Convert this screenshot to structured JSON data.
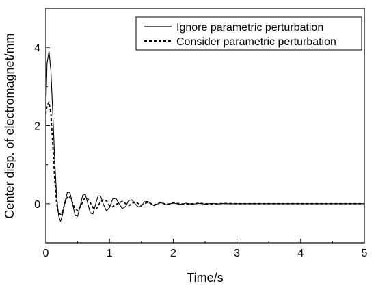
{
  "chart_data": {
    "type": "line",
    "xlabel": "Time/s",
    "ylabel": "Center disp. of electromagnet/mm",
    "xlim": [
      0,
      5
    ],
    "ylim": [
      -1.0,
      5.0
    ],
    "xticks": [
      0,
      1,
      2,
      3,
      4,
      5
    ],
    "xtick_labels": [
      "0",
      "1",
      "2",
      "3",
      "4",
      "5"
    ],
    "yticks": [
      0,
      2,
      4
    ],
    "ytick_labels": [
      "0",
      "2",
      "4"
    ],
    "grid": false,
    "legend_position": "top-right",
    "series": [
      {
        "name": "Ignore parametric perturbation",
        "style": "solid",
        "color": "#000000",
        "x": [
          0,
          0.02,
          0.05,
          0.08,
          0.11,
          0.14,
          0.17,
          0.2,
          0.23,
          0.26,
          0.3,
          0.34,
          0.38,
          0.42,
          0.46,
          0.5,
          0.54,
          0.58,
          0.62,
          0.66,
          0.7,
          0.74,
          0.78,
          0.82,
          0.86,
          0.9,
          0.95,
          1.0,
          1.05,
          1.1,
          1.15,
          1.2,
          1.25,
          1.3,
          1.35,
          1.4,
          1.45,
          1.5,
          1.55,
          1.6,
          1.65,
          1.7,
          1.8,
          1.9,
          2.0,
          2.1,
          2.2,
          2.3,
          2.4,
          2.5,
          2.6,
          2.7,
          2.8,
          2.9,
          3.0,
          3.5,
          4.0,
          4.5,
          5.0
        ],
        "y": [
          2.4,
          3.6,
          3.9,
          3.4,
          2.3,
          1.1,
          0.2,
          -0.3,
          -0.45,
          -0.3,
          0.05,
          0.3,
          0.28,
          0.0,
          -0.3,
          -0.32,
          -0.05,
          0.22,
          0.24,
          0.0,
          -0.24,
          -0.26,
          -0.02,
          0.2,
          0.2,
          0.0,
          -0.18,
          -0.1,
          0.12,
          0.14,
          0.0,
          -0.12,
          -0.08,
          0.08,
          0.1,
          0.0,
          -0.08,
          -0.06,
          0.05,
          0.06,
          0.0,
          -0.05,
          0.03,
          -0.03,
          0.02,
          -0.02,
          0.015,
          -0.015,
          0.01,
          -0.01,
          0.008,
          -0.006,
          0.005,
          -0.004,
          0.0,
          0.0,
          0.0,
          0.0,
          0.0
        ]
      },
      {
        "name": "Consider parametric perturbation",
        "style": "dashed",
        "color": "#000000",
        "x": [
          0,
          0.02,
          0.05,
          0.08,
          0.11,
          0.14,
          0.17,
          0.2,
          0.24,
          0.28,
          0.32,
          0.36,
          0.4,
          0.45,
          0.5,
          0.55,
          0.6,
          0.65,
          0.7,
          0.75,
          0.8,
          0.85,
          0.9,
          0.95,
          1.0,
          1.05,
          1.1,
          1.2,
          1.3,
          1.4,
          1.5,
          1.6,
          1.7,
          1.8,
          1.9,
          2.0,
          2.2,
          2.4,
          2.6,
          2.8,
          3.0,
          3.5,
          4.0,
          4.5,
          5.0
        ],
        "y": [
          2.3,
          2.5,
          2.6,
          2.3,
          1.5,
          0.6,
          0.0,
          -0.25,
          -0.28,
          -0.1,
          0.12,
          0.2,
          0.1,
          -0.1,
          -0.18,
          -0.06,
          0.12,
          0.15,
          0.02,
          -0.12,
          -0.12,
          0.03,
          0.1,
          0.08,
          -0.05,
          -0.08,
          -0.02,
          0.06,
          -0.05,
          0.05,
          -0.04,
          0.04,
          -0.03,
          0.03,
          -0.02,
          0.02,
          -0.015,
          0.012,
          -0.01,
          0.008,
          0.0,
          0.0,
          0.0,
          0.0,
          0.0
        ]
      }
    ]
  }
}
